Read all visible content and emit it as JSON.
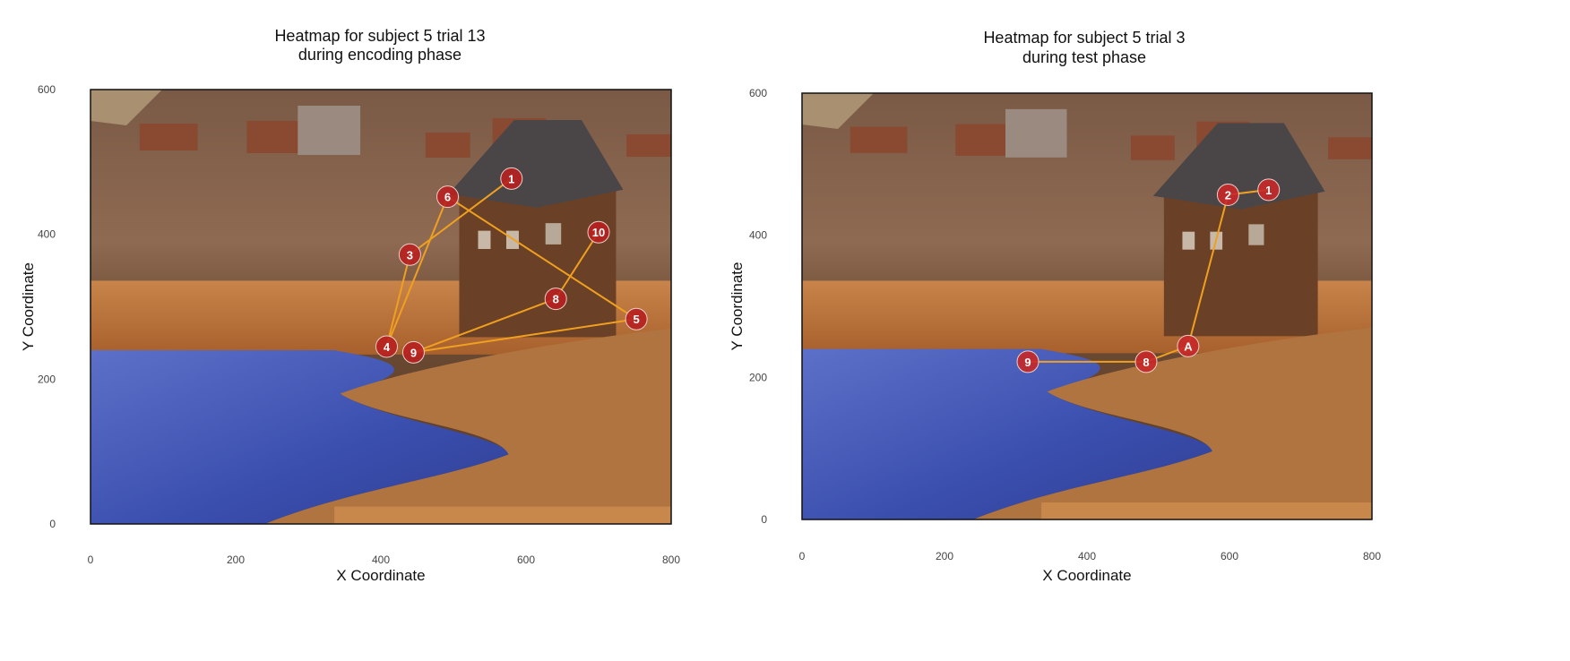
{
  "chart_data": [
    {
      "type": "scatter",
      "title": "Heatmap for subject 5 trial 13",
      "subtitle": "during encoding phase",
      "xlabel": "X Coordinate",
      "ylabel": "Y Coordinate",
      "xlim": [
        0,
        800
      ],
      "ylim": [
        0,
        600
      ],
      "xticks": [
        "0",
        "200",
        "400",
        "600",
        "800"
      ],
      "yticks": [
        "0",
        "200",
        "400",
        "600"
      ],
      "grid": false,
      "line_color": "#f0a020",
      "marker_color": "#b82020",
      "points": [
        {
          "label": "1",
          "x": 580,
          "y": 477
        },
        {
          "label": "3",
          "x": 440,
          "y": 372
        },
        {
          "label": "4",
          "x": 408,
          "y": 245
        },
        {
          "label": "6",
          "x": 492,
          "y": 452
        },
        {
          "label": "5",
          "x": 752,
          "y": 283
        },
        {
          "label": "9",
          "x": 445,
          "y": 237
        },
        {
          "label": "8",
          "x": 641,
          "y": 311
        },
        {
          "label": "10",
          "x": 700,
          "y": 403
        }
      ]
    },
    {
      "type": "scatter",
      "title": "Heatmap for subject 5 trial 3",
      "subtitle": "during test phase",
      "xlabel": "X Coordinate",
      "ylabel": "Y Coordinate",
      "xlim": [
        0,
        800
      ],
      "ylim": [
        0,
        600
      ],
      "xticks": [
        "0",
        "200",
        "400",
        "600",
        "800"
      ],
      "yticks": [
        "0",
        "200",
        "400",
        "600"
      ],
      "grid": false,
      "line_color": "#f0a020",
      "marker_color": "#c82828",
      "points": [
        {
          "label": "1",
          "x": 655,
          "y": 464
        },
        {
          "label": "2",
          "x": 598,
          "y": 457
        },
        {
          "label": "A",
          "x": 542,
          "y": 244
        },
        {
          "label": "8",
          "x": 483,
          "y": 222
        },
        {
          "label": "9",
          "x": 317,
          "y": 222
        }
      ]
    }
  ]
}
